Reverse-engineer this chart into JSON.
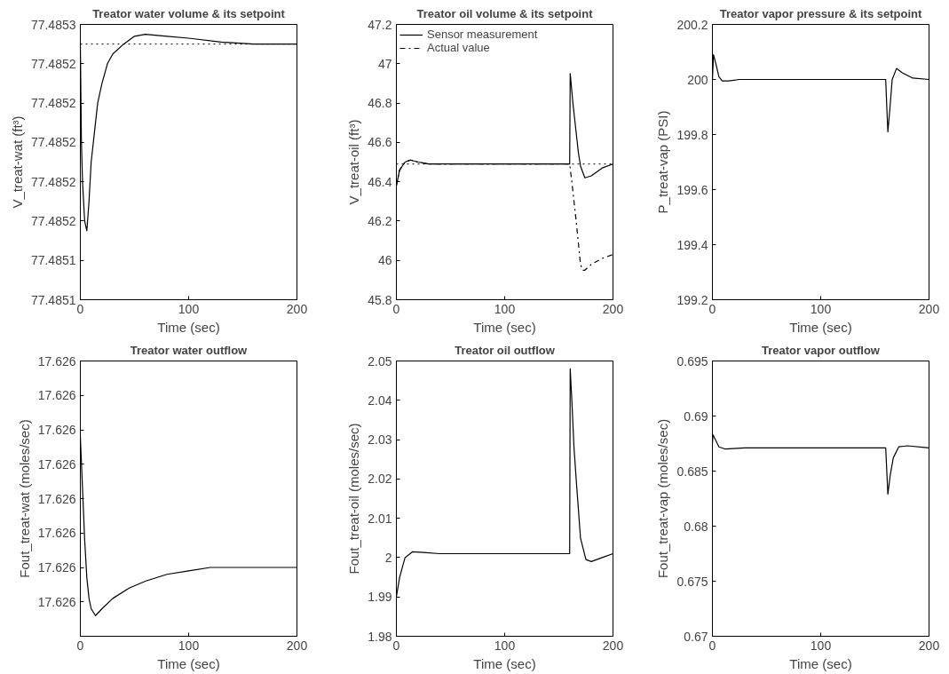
{
  "chart_data": [
    {
      "type": "line",
      "title": "Treator water volume & its setpoint",
      "xlabel": "Time (sec)",
      "ylabel": "V_treat-wat (ft³)",
      "xlim": [
        0,
        200
      ],
      "xticks": [
        0,
        100,
        200
      ],
      "ylim": [
        77.48512,
        77.48526
      ],
      "yticks": [
        {
          "value": 77.48512,
          "label": "77.4851"
        },
        {
          "value": 77.48514,
          "label": "77.4851"
        },
        {
          "value": 77.48516,
          "label": "77.4852"
        },
        {
          "value": 77.48518,
          "label": "77.4852"
        },
        {
          "value": 77.4852,
          "label": "77.4852"
        },
        {
          "value": 77.48522,
          "label": "77.4852"
        },
        {
          "value": 77.48524,
          "label": "77.4852"
        },
        {
          "value": 77.48526,
          "label": "77.4853"
        }
      ],
      "ref_lines": [
        {
          "axis": "y",
          "value": 77.48525,
          "color": "#000000",
          "line_style": "dotted"
        }
      ],
      "series": [
        {
          "color": "#000000",
          "line_style": "solid",
          "x": [
            0,
            1,
            2,
            3,
            4,
            6,
            8,
            10,
            12,
            16,
            20,
            25,
            30,
            40,
            50,
            60,
            80,
            100,
            130,
            160,
            200
          ],
          "values": [
            77.48525,
            77.4852,
            77.48518,
            77.48517,
            77.48516,
            77.485155,
            77.48517,
            77.48519,
            77.4852,
            77.48522,
            77.48523,
            77.48524,
            77.485245,
            77.48525,
            77.485254,
            77.485255,
            77.485254,
            77.485253,
            77.485251,
            77.48525,
            77.48525
          ]
        }
      ]
    },
    {
      "type": "line",
      "title": "Treator oil volume & its setpoint",
      "xlabel": "Time (sec)",
      "ylabel": "V_treat-oil (ft³)",
      "xlim": [
        0,
        200
      ],
      "xticks": [
        0,
        100,
        200
      ],
      "ylim": [
        45.8,
        47.2
      ],
      "yticks": [
        45.8,
        46,
        46.2,
        46.4,
        46.6,
        46.8,
        47,
        47.2
      ],
      "legend": "top left",
      "ref_lines": [
        {
          "axis": "y",
          "value": 46.49,
          "color": "#000000",
          "line_style": "dotted"
        }
      ],
      "series": [
        {
          "name": "Sensor measurement",
          "color": "#000000",
          "line_style": "solid",
          "x": [
            0,
            3,
            8,
            13,
            20,
            30,
            160,
            160.5,
            163,
            165,
            168,
            170,
            174,
            180,
            190,
            200
          ],
          "values": [
            46.38,
            46.46,
            46.5,
            46.51,
            46.5,
            46.49,
            46.49,
            46.95,
            46.8,
            46.7,
            46.55,
            46.48,
            46.42,
            46.43,
            46.47,
            46.49
          ]
        },
        {
          "name": "Actual value",
          "color": "#000000",
          "line_style": "dashdot",
          "x": [
            0,
            3,
            8,
            13,
            20,
            30,
            160,
            162,
            166,
            170,
            172,
            174,
            180,
            190,
            200
          ],
          "values": [
            46.38,
            46.46,
            46.5,
            46.51,
            46.5,
            46.49,
            46.49,
            46.4,
            46.2,
            45.98,
            45.95,
            45.95,
            45.98,
            46.01,
            46.03
          ]
        }
      ]
    },
    {
      "type": "line",
      "title": "Treator vapor pressure & its setpoint",
      "xlabel": "Time (sec)",
      "ylabel": "P_treat-vap (PSI)",
      "xlim": [
        0,
        200
      ],
      "xticks": [
        0,
        100,
        200
      ],
      "ylim": [
        199.2,
        200.2
      ],
      "yticks": [
        199.2,
        199.4,
        199.6,
        199.8,
        200,
        200.2
      ],
      "series": [
        {
          "color": "#000000",
          "line_style": "solid",
          "x": [
            0,
            1,
            3,
            6,
            9,
            15,
            25,
            160,
            161,
            162,
            164,
            166,
            170,
            175,
            185,
            200
          ],
          "values": [
            200.0,
            200.09,
            200.06,
            200.01,
            199.995,
            199.995,
            200,
            200,
            199.9,
            199.81,
            199.9,
            200.0,
            200.04,
            200.025,
            200.005,
            200
          ]
        }
      ]
    },
    {
      "type": "line",
      "title": "Treator water outflow",
      "xlabel": "Time (sec)",
      "ylabel": "Fout_treat-wat (moles/sec)",
      "xlim": [
        0,
        200
      ],
      "xticks": [
        0,
        100,
        200
      ],
      "ylim": [
        17.62596,
        17.62604
      ],
      "yticks": [
        {
          "value": 17.62597,
          "label": "17.626"
        },
        {
          "value": 17.62598,
          "label": "17.626"
        },
        {
          "value": 17.62599,
          "label": "17.626"
        },
        {
          "value": 17.626,
          "label": "17.626"
        },
        {
          "value": 17.62601,
          "label": "17.626"
        },
        {
          "value": 17.62602,
          "label": "17.626"
        },
        {
          "value": 17.62603,
          "label": "17.626"
        },
        {
          "value": 17.62604,
          "label": "17.626"
        }
      ],
      "series": [
        {
          "color": "#000000",
          "line_style": "solid",
          "x": [
            0,
            2,
            4,
            6,
            8,
            10,
            14,
            20,
            30,
            45,
            60,
            80,
            100,
            120,
            150,
            175,
            200
          ],
          "values": [
            17.626018,
            17.626003,
            17.625988,
            17.625977,
            17.625971,
            17.625968,
            17.625966,
            17.625968,
            17.625971,
            17.625974,
            17.625976,
            17.625978,
            17.625979,
            17.62598,
            17.62598,
            17.62598,
            17.62598
          ]
        }
      ]
    },
    {
      "type": "line",
      "title": "Treator oil outflow",
      "xlabel": "Time (sec)",
      "ylabel": "Fout_treat-oil (moles/sec)",
      "xlim": [
        0,
        200
      ],
      "xticks": [
        0,
        100,
        200
      ],
      "ylim": [
        1.98,
        2.05
      ],
      "yticks": [
        1.98,
        1.99,
        2,
        2.01,
        2.02,
        2.03,
        2.04,
        2.05
      ],
      "series": [
        {
          "color": "#000000",
          "line_style": "solid",
          "x": [
            0,
            3,
            8,
            15,
            25,
            40,
            160,
            160.5,
            162,
            164,
            166,
            170,
            175,
            180,
            190,
            200
          ],
          "values": [
            1.99,
            1.995,
            2.0,
            2.0015,
            2.0013,
            2.001,
            2.001,
            2.048,
            2.04,
            2.028,
            2.02,
            2.005,
            1.9995,
            1.999,
            2.0,
            2.001
          ]
        }
      ]
    },
    {
      "type": "line",
      "title": "Treator vapor outflow",
      "xlabel": "Time (sec)",
      "ylabel": "Fout_treat-vap (moles/sec)",
      "xlim": [
        0,
        200
      ],
      "xticks": [
        0,
        100,
        200
      ],
      "ylim": [
        0.67,
        0.695
      ],
      "yticks": [
        0.67,
        0.675,
        0.68,
        0.685,
        0.69,
        0.695
      ],
      "series": [
        {
          "color": "#000000",
          "line_style": "solid",
          "x": [
            0,
            0.5,
            3,
            6,
            12,
            30,
            160,
            162,
            164,
            167,
            172,
            180,
            200
          ],
          "values": [
            0.6875,
            0.6883,
            0.6878,
            0.6872,
            0.687,
            0.6871,
            0.6871,
            0.6829,
            0.6845,
            0.6862,
            0.6872,
            0.6873,
            0.6871
          ]
        }
      ]
    }
  ]
}
